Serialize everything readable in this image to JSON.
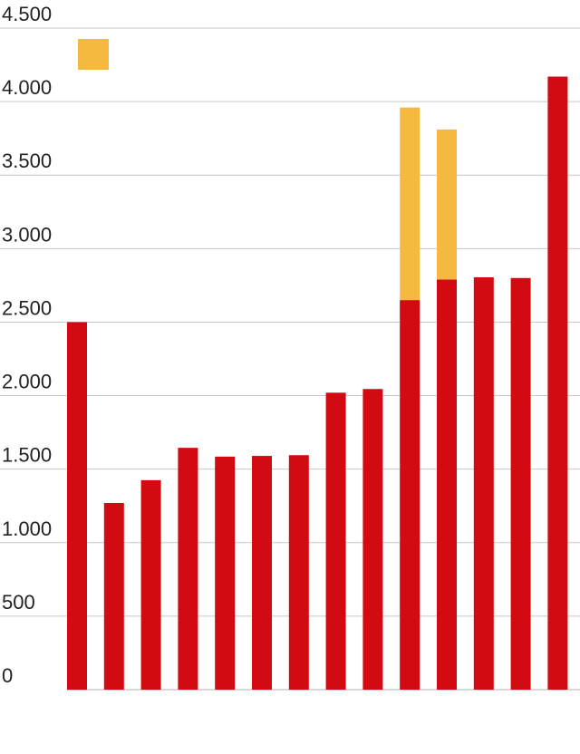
{
  "chart_data": {
    "type": "bar",
    "stacked": true,
    "title": "",
    "xlabel": "",
    "ylabel": "",
    "ylim": [
      0,
      4500
    ],
    "grid": true,
    "legend": "top-left",
    "y_ticks": [
      0,
      500,
      1000,
      1500,
      2000,
      2500,
      3000,
      3500,
      4000,
      4500
    ],
    "y_tick_labels": [
      "0",
      "500",
      "1.000",
      "1.500",
      "2.000",
      "2.500",
      "3.000",
      "3.500",
      "4.000",
      "4.500"
    ],
    "categories": [
      "",
      "",
      "",
      "",
      "",
      "",
      "",
      "",
      "",
      "",
      "",
      "",
      "",
      ""
    ],
    "series": [
      {
        "color": "#d20a11",
        "values": [
          2500,
          1270,
          1425,
          1645,
          1585,
          1590,
          1595,
          2020,
          2045,
          2650,
          2790,
          2805,
          2800,
          4170
        ]
      },
      {
        "color": "#f6b940",
        "values": [
          0,
          0,
          0,
          0,
          0,
          0,
          0,
          0,
          0,
          1310,
          1020,
          0,
          0,
          0
        ]
      }
    ]
  }
}
